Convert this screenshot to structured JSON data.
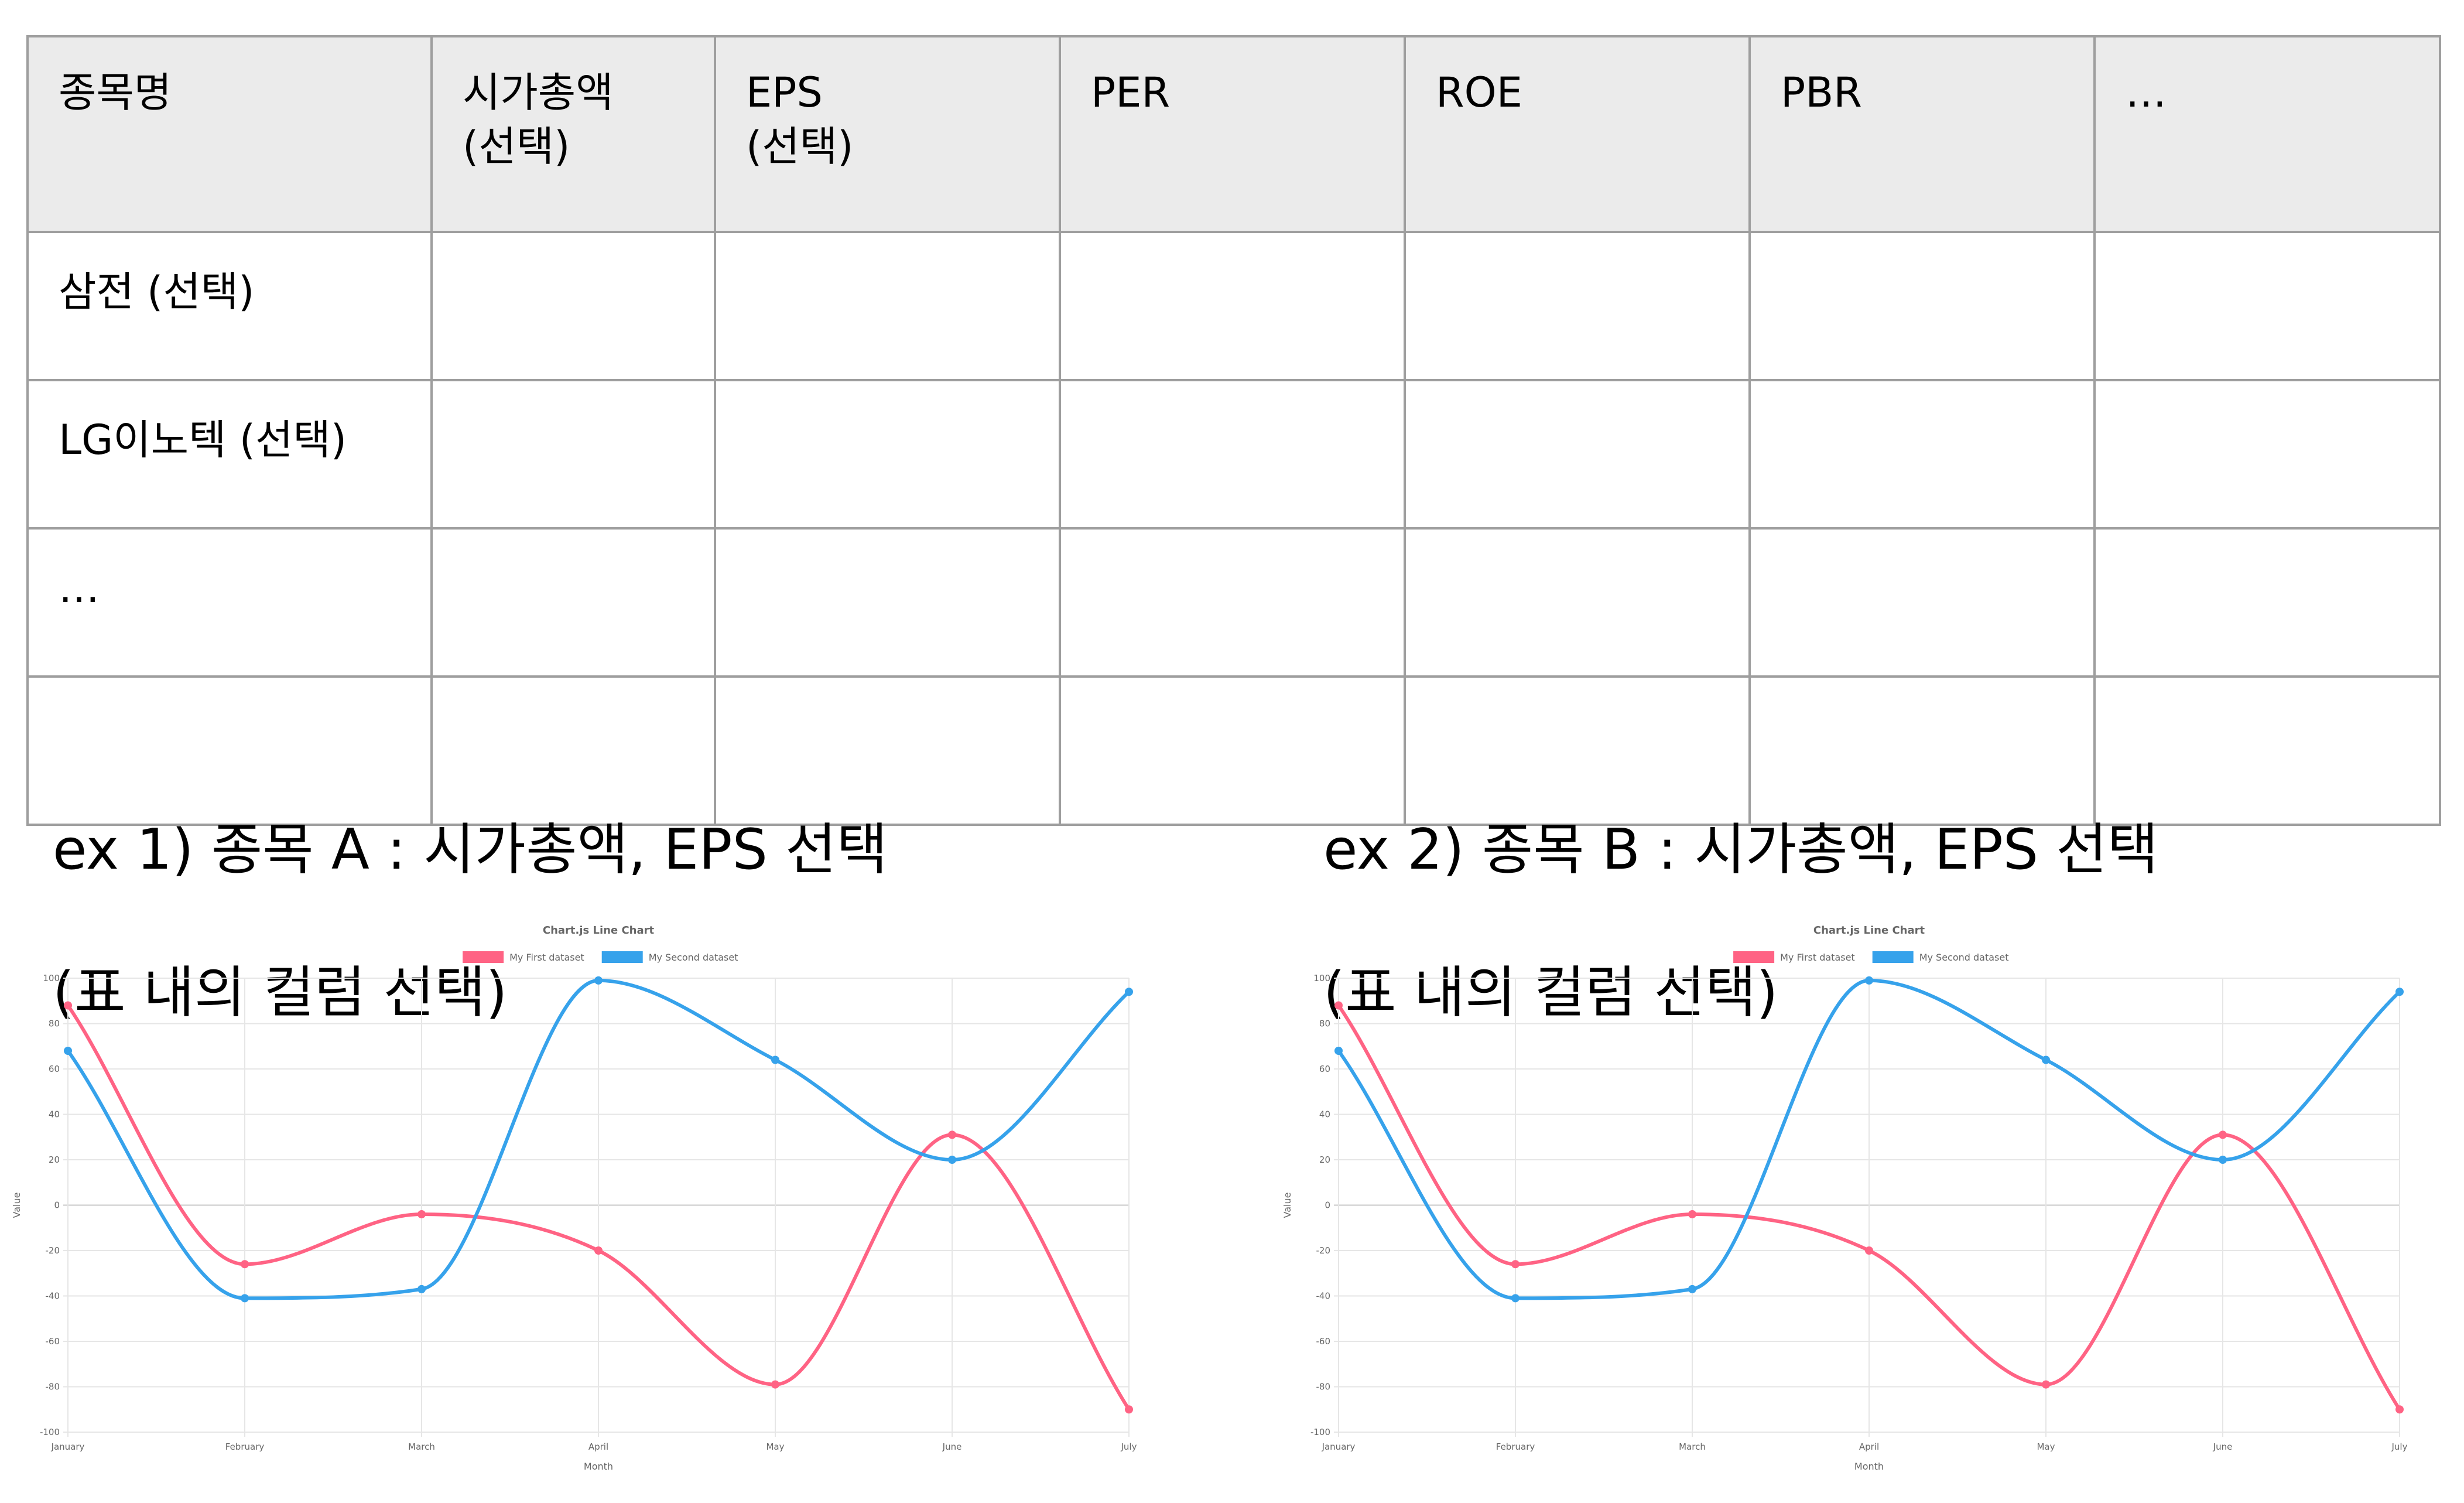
{
  "table": {
    "headers": [
      "종목명",
      "시가총액\n(선택)",
      "EPS\n(선택)",
      "PER",
      "ROE",
      "PBR",
      "…"
    ],
    "rows": [
      [
        "삼전 (선택)",
        "",
        "",
        "",
        "",
        "",
        ""
      ],
      [
        "LG이노텍 (선택)",
        "",
        "",
        "",
        "",
        "",
        ""
      ],
      [
        "…",
        "",
        "",
        "",
        "",
        "",
        ""
      ],
      [
        "",
        "",
        "",
        "",
        "",
        "",
        ""
      ]
    ]
  },
  "captions": [
    {
      "line1": "ex 1) 종목 A : 시가총액, EPS 선택",
      "line2": "(표 내의 컬럼 선택)"
    },
    {
      "line1": "ex 2) 종목 B : 시가총액, EPS 선택",
      "line2": "(표 내의 컬럼 선택)"
    }
  ],
  "chart_data": [
    {
      "type": "line",
      "title": "Chart.js Line Chart",
      "xlabel": "Month",
      "ylabel": "Value",
      "categories": [
        "January",
        "February",
        "March",
        "April",
        "May",
        "June",
        "July"
      ],
      "ylim": [
        -100,
        100
      ],
      "yticks": [
        100,
        80,
        60,
        40,
        20,
        0,
        -20,
        -40,
        -60,
        -80,
        -100
      ],
      "grid": true,
      "legend": "top",
      "series": [
        {
          "name": "My First dataset",
          "color": "#ff6384",
          "values": [
            88,
            -26,
            -4,
            -20,
            -79,
            31,
            -90
          ]
        },
        {
          "name": "My Second dataset",
          "color": "#36a2eb",
          "values": [
            68,
            -41,
            -37,
            99,
            64,
            20,
            94
          ]
        }
      ]
    },
    {
      "type": "line",
      "title": "Chart.js Line Chart",
      "xlabel": "Month",
      "ylabel": "Value",
      "categories": [
        "January",
        "February",
        "March",
        "April",
        "May",
        "June",
        "July"
      ],
      "ylim": [
        -100,
        100
      ],
      "yticks": [
        100,
        80,
        60,
        40,
        20,
        0,
        -20,
        -40,
        -60,
        -80,
        -100
      ],
      "grid": true,
      "legend": "top",
      "series": [
        {
          "name": "My First dataset",
          "color": "#ff6384",
          "values": [
            88,
            -26,
            -4,
            -20,
            -79,
            31,
            -90
          ]
        },
        {
          "name": "My Second dataset",
          "color": "#36a2eb",
          "values": [
            68,
            -41,
            -37,
            99,
            64,
            20,
            94
          ]
        }
      ]
    }
  ]
}
